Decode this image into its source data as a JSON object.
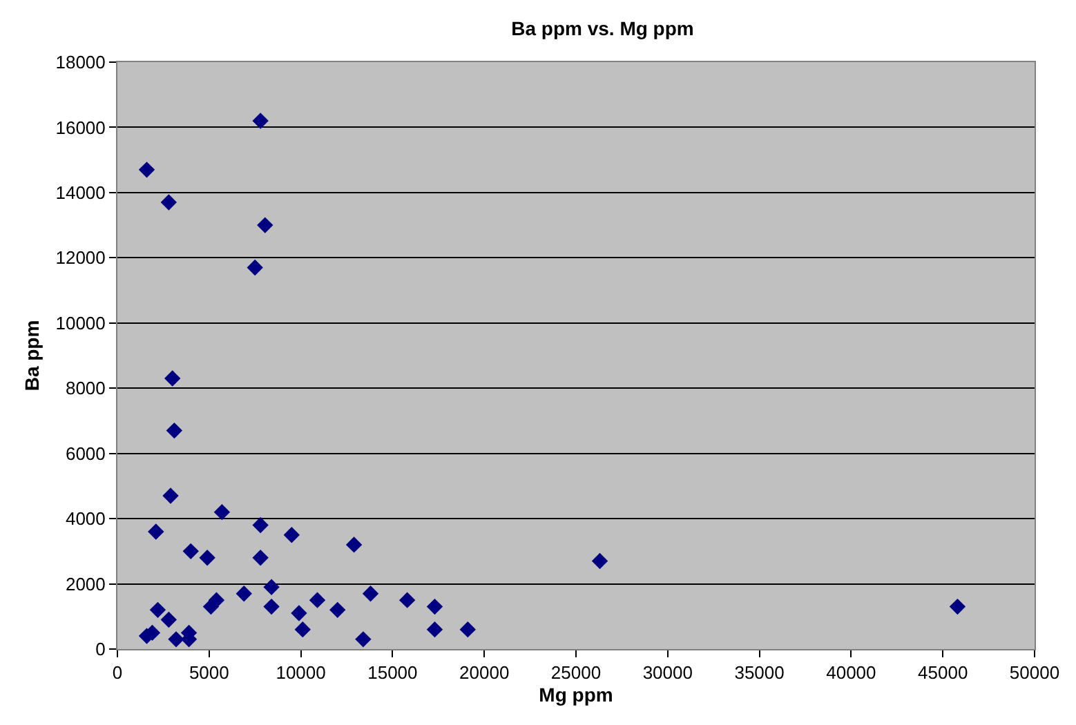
{
  "chart_data": {
    "type": "scatter",
    "title": "Ba ppm vs. Mg ppm",
    "xlabel": "Mg ppm",
    "ylabel": "Ba ppm",
    "x": [
      1600,
      2800,
      7800,
      8050,
      7500,
      3000,
      3100,
      2900,
      2100,
      5700,
      7800,
      9500,
      4000,
      4900,
      7800,
      12900,
      26300,
      45800,
      6900,
      8400,
      8400,
      5100,
      5400,
      2200,
      2800,
      1600,
      1900,
      3200,
      3900,
      3900,
      9900,
      10100,
      10900,
      12000,
      13400,
      13800,
      15800,
      17300,
      17300,
      19100
    ],
    "values": [
      14700,
      13700,
      16200,
      13000,
      11700,
      8300,
      6700,
      4700,
      3600,
      4200,
      3800,
      3500,
      3000,
      2800,
      2800,
      3200,
      2700,
      1300,
      1700,
      1900,
      1300,
      1300,
      1500,
      1200,
      900,
      400,
      500,
      300,
      500,
      300,
      1100,
      600,
      1500,
      1200,
      300,
      1700,
      1500,
      1300,
      600,
      600
    ],
    "color": "#000080",
    "marker": "diamond",
    "xlim": [
      0,
      50000
    ],
    "xticks": [
      0,
      5000,
      10000,
      15000,
      20000,
      25000,
      30000,
      35000,
      40000,
      45000,
      50000
    ],
    "ylim": [
      0,
      18000
    ],
    "yticks": [
      0,
      2000,
      4000,
      6000,
      8000,
      10000,
      12000,
      14000,
      16000,
      18000
    ],
    "grid": "y"
  }
}
